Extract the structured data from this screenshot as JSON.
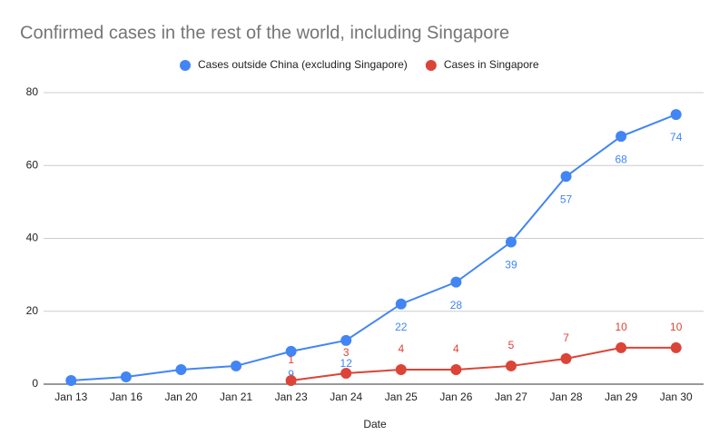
{
  "chart_data": {
    "type": "line",
    "title": "Confirmed cases in the rest of the world, including Singapore",
    "x_label": "Date",
    "categories": [
      "Jan 13",
      "Jan 16",
      "Jan 20",
      "Jan 21",
      "Jan 23",
      "Jan 24",
      "Jan 25",
      "Jan 26",
      "Jan 27",
      "Jan 28",
      "Jan 29",
      "Jan 30"
    ],
    "series": [
      {
        "name": "Cases outside China (excluding Singapore)",
        "color": "#4285f4",
        "values": [
          1,
          2,
          4,
          5,
          9,
          12,
          22,
          28,
          39,
          57,
          68,
          74
        ],
        "value_labels": [
          null,
          null,
          null,
          null,
          "9",
          "12",
          "22",
          "28",
          "39",
          "57",
          "68",
          "74"
        ]
      },
      {
        "name": "Cases in Singapore",
        "color": "#db4437",
        "values": [
          null,
          null,
          null,
          null,
          1,
          3,
          4,
          4,
          5,
          7,
          10,
          10
        ],
        "value_labels": [
          null,
          null,
          null,
          null,
          "1",
          "3",
          "4",
          "4",
          "5",
          "7",
          "10",
          "10"
        ]
      }
    ],
    "ylim": [
      0,
      80
    ],
    "yticks": [
      0,
      20,
      40,
      60,
      80
    ],
    "grid": true,
    "legend": "top"
  }
}
